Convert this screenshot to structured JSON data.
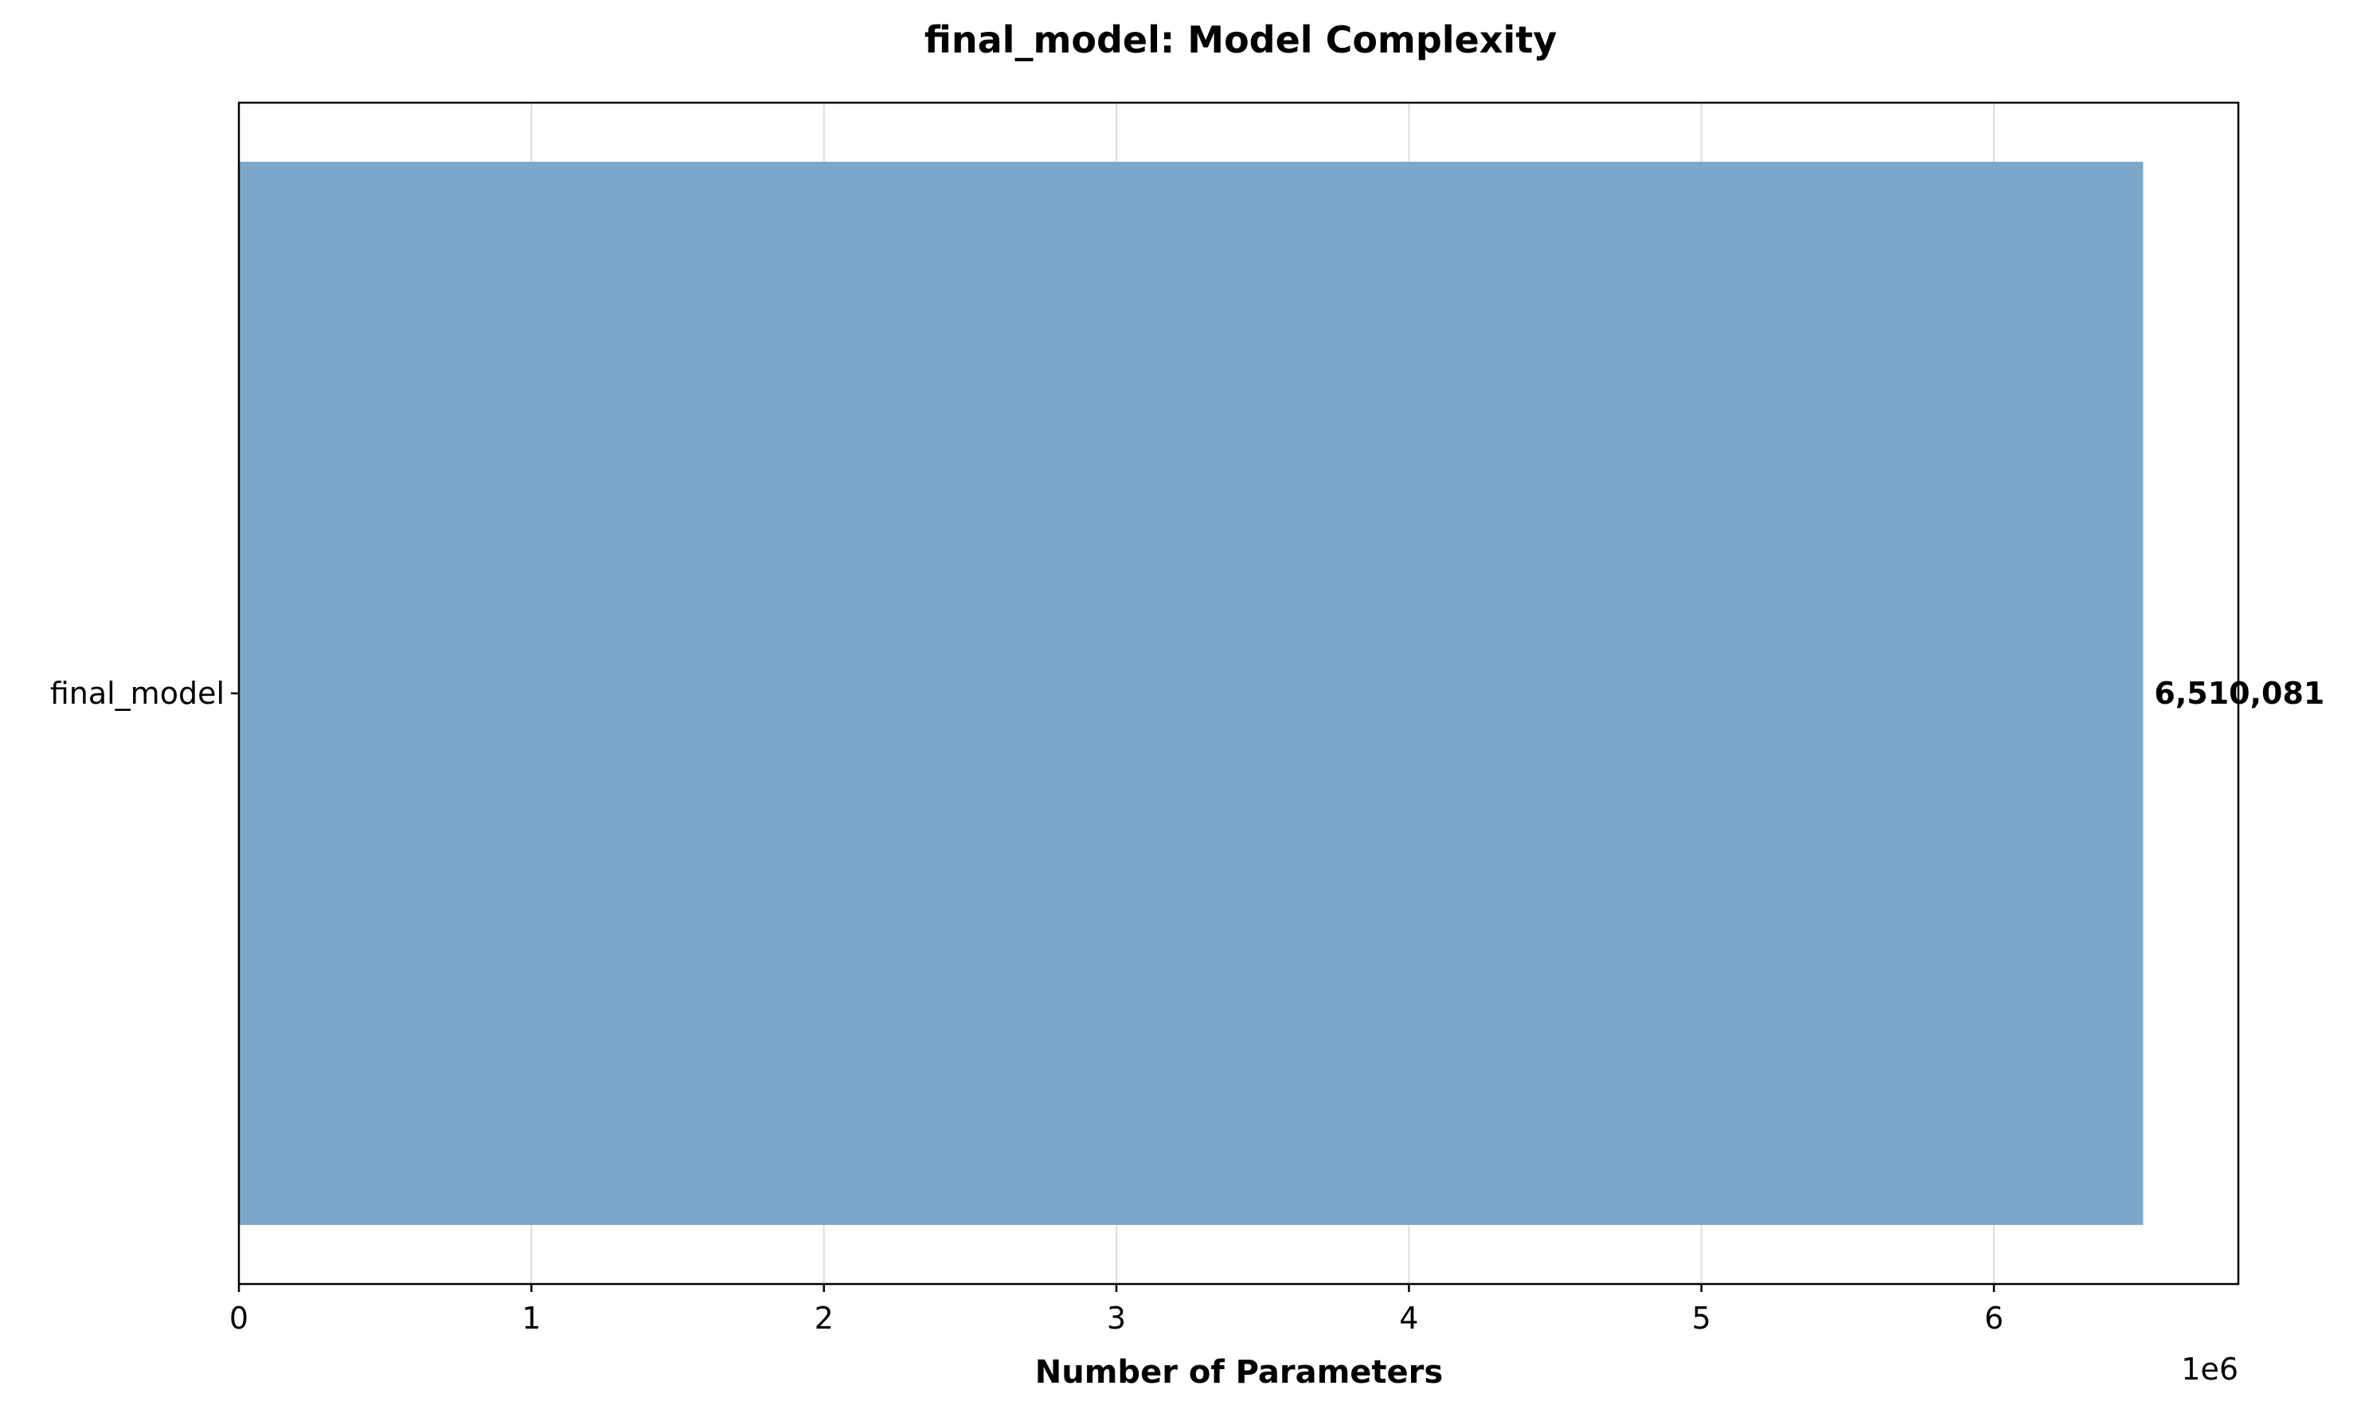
{
  "chart_data": {
    "type": "bar",
    "orientation": "horizontal",
    "title": "final_model: Model Complexity",
    "xlabel": "Number of Parameters",
    "ylabel": "",
    "categories": [
      "final_model"
    ],
    "values": [
      6510081
    ],
    "value_labels": [
      "6,510,081"
    ],
    "xlim": [
      0,
      6835585
    ],
    "xticks": [
      0,
      1000000,
      2000000,
      3000000,
      4000000,
      5000000,
      6000000
    ],
    "xtick_labels": [
      "0",
      "1",
      "2",
      "3",
      "4",
      "5",
      "6"
    ],
    "x_offset_label": "1e6",
    "grid": true,
    "bar_color": "#7ba7cb"
  }
}
